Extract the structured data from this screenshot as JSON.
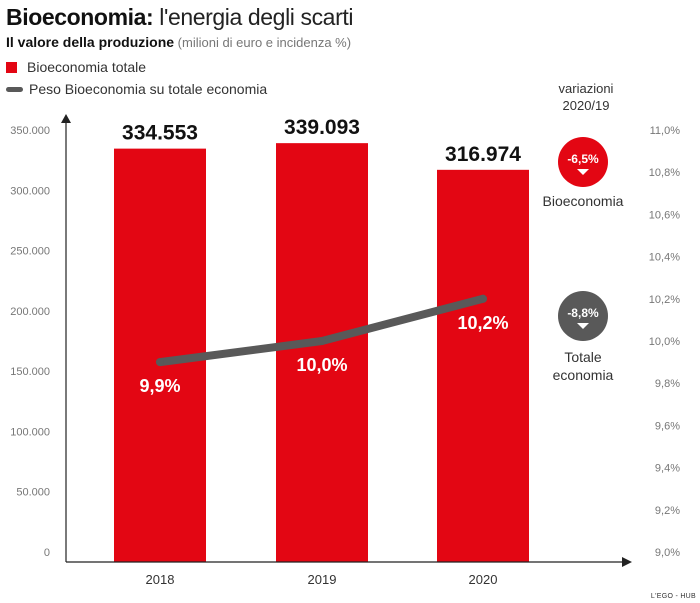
{
  "header": {
    "title_bold": "Bioeconomia:",
    "title_rest": " l'energia degli scarti",
    "subtitle_bold": "Il valore della produzione",
    "subtitle_unit": " (milioni di euro e incidenza %)"
  },
  "legend": {
    "bar_label": "Bioeconomia totale",
    "line_label": "Peso Bioeconomia su totale economia"
  },
  "variations": {
    "heading_line1": "variazioni",
    "heading_line2": "2020/19",
    "bio_value": "-6,5%",
    "bio_label": "Bioeconomia",
    "tot_value": "-8,8%",
    "tot_label_line1": "Totale",
    "tot_label_line2": "economia"
  },
  "colors": {
    "bar": "#e30613",
    "line": "#595959",
    "bio_badge": "#e30613",
    "tot_badge": "#595959",
    "axis_text": "#777777"
  },
  "credit": "L'EGO - HUB",
  "chart_data": {
    "type": "bar",
    "categories": [
      "2018",
      "2019",
      "2020"
    ],
    "series": [
      {
        "name": "Bioeconomia totale",
        "type": "bar",
        "axis": "left",
        "values": [
          334553,
          339093,
          316974
        ],
        "labels": [
          "334.553",
          "339.093",
          "316.974"
        ]
      },
      {
        "name": "Peso Bioeconomia su totale economia",
        "type": "line",
        "axis": "right",
        "values": [
          9.9,
          10.0,
          10.2
        ],
        "labels": [
          "9,9%",
          "10,0%",
          "10,2%"
        ]
      }
    ],
    "y_left": {
      "ylim": [
        0,
        350000
      ],
      "ticks": [
        "0",
        "50.000",
        "100.000",
        "150.000",
        "200.000",
        "250.000",
        "300.000",
        "350.000"
      ]
    },
    "y_right": {
      "ylim": [
        9.0,
        11.0
      ],
      "ticks": [
        "9,0%",
        "9,2%",
        "9,4%",
        "9,6%",
        "9,8%",
        "10,0%",
        "10,2%",
        "10,4%",
        "10,6%",
        "10,8%",
        "11,0%"
      ]
    },
    "grid": false,
    "legend_position": "top-left"
  }
}
